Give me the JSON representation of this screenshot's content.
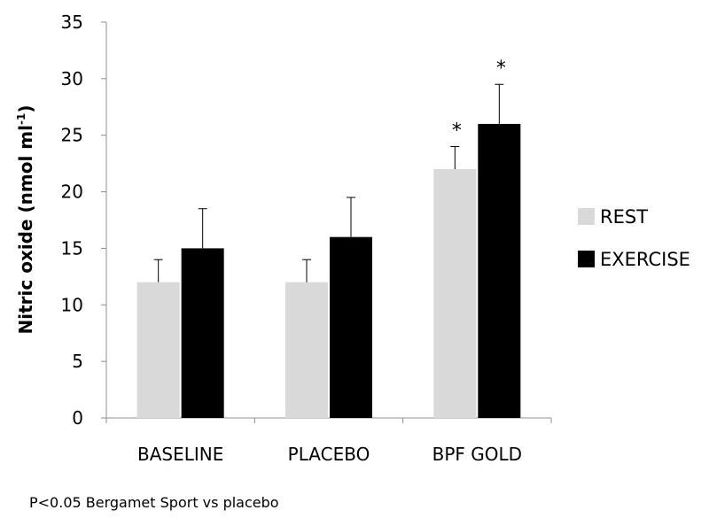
{
  "chart_data": {
    "type": "bar",
    "title": "",
    "xlabel": "",
    "ylabel": "Nitric oxide (nmol ml",
    "ylabel_sup": "-1",
    "ylabel_close": ")",
    "ylim": [
      0,
      35
    ],
    "yticks": [
      0,
      5,
      10,
      15,
      20,
      25,
      30,
      35
    ],
    "grid": false,
    "legend_position": "right",
    "categories": [
      "BASELINE",
      "PLACEBO",
      "BPF GOLD"
    ],
    "series": [
      {
        "name": "REST",
        "color": "#d9d9d9",
        "values": [
          12,
          12,
          22
        ],
        "errors": [
          2,
          2,
          2
        ],
        "significance": [
          "",
          "",
          "*"
        ]
      },
      {
        "name": "EXERCISE",
        "color": "#000000",
        "values": [
          15,
          16,
          26
        ],
        "errors": [
          3.5,
          3.5,
          3.5
        ],
        "significance": [
          "",
          "",
          "*"
        ]
      }
    ]
  },
  "footnote": "P<0.05 Bergamet Sport vs placebo"
}
